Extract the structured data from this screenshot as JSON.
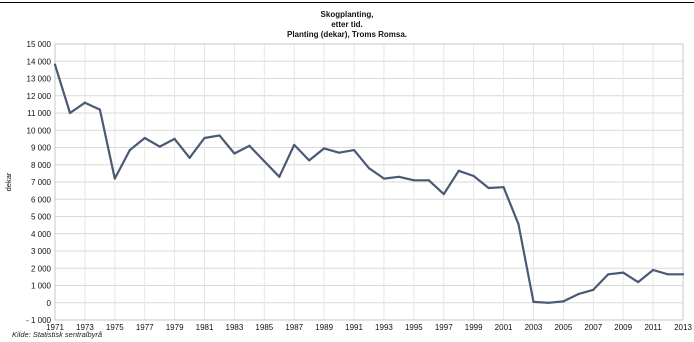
{
  "chart_data": {
    "type": "line",
    "title": "Skogplanting,",
    "subtitle_1": "etter tid.",
    "subtitle_2": "Planting (dekar), Troms Romsa.",
    "xlabel": "",
    "ylabel": "dekar",
    "source": "Kilde: Statistisk sentralbyrå",
    "xlim": [
      1971,
      2013
    ],
    "ylim": [
      -1000,
      15000
    ],
    "y_ticks": [
      -1000,
      0,
      1000,
      2000,
      3000,
      4000,
      5000,
      6000,
      7000,
      8000,
      9000,
      10000,
      11000,
      12000,
      13000,
      14000,
      15000
    ],
    "y_tick_labels": [
      "- 1 000",
      "0",
      "1 000",
      "2 000",
      "3 000",
      "4 000",
      "5 000",
      "6 000",
      "7 000",
      "8 000",
      "9 000",
      "10 000",
      "11 000",
      "12 000",
      "13 000",
      "14 000",
      "15 000"
    ],
    "x_ticks": [
      1971,
      1973,
      1975,
      1977,
      1979,
      1981,
      1983,
      1985,
      1987,
      1989,
      1991,
      1993,
      1995,
      1997,
      1999,
      2001,
      2003,
      2005,
      2007,
      2009,
      2011,
      2013
    ],
    "x_tick_labels": [
      "1971",
      "1973",
      "1975",
      "1977",
      "1979",
      "1981",
      "1983",
      "1985",
      "1987",
      "1989",
      "1991",
      "1993",
      "1995",
      "1997",
      "1999",
      "2001",
      "2003",
      "2005",
      "2007",
      "2009",
      "2011",
      "2013"
    ],
    "grid": true,
    "line_color": "#4a5a76",
    "series": [
      {
        "x": [
          1971,
          1972,
          1973,
          1974,
          1975,
          1976,
          1977,
          1978,
          1979,
          1980,
          1981,
          1982,
          1983,
          1984,
          1985,
          1986,
          1987,
          1988,
          1989,
          1990,
          1991,
          1992,
          1993,
          1994,
          1995,
          1996,
          1997,
          1998,
          1999,
          2000,
          2001,
          2002,
          2003,
          2004,
          2005,
          2006,
          2007,
          2008,
          2009,
          2010,
          2011,
          2012,
          2013
        ],
        "values": [
          13800,
          11000,
          11600,
          11200,
          7200,
          8850,
          9550,
          9050,
          9500,
          8400,
          9550,
          9700,
          8650,
          9100,
          8200,
          7300,
          9150,
          8250,
          8950,
          8700,
          8850,
          7800,
          7200,
          7300,
          7100,
          7100,
          6300,
          7650,
          7350,
          6650,
          6700,
          4550,
          50,
          0,
          80,
          500,
          750,
          1650,
          1750,
          1200,
          1900,
          1650,
          1650
        ]
      }
    ]
  }
}
